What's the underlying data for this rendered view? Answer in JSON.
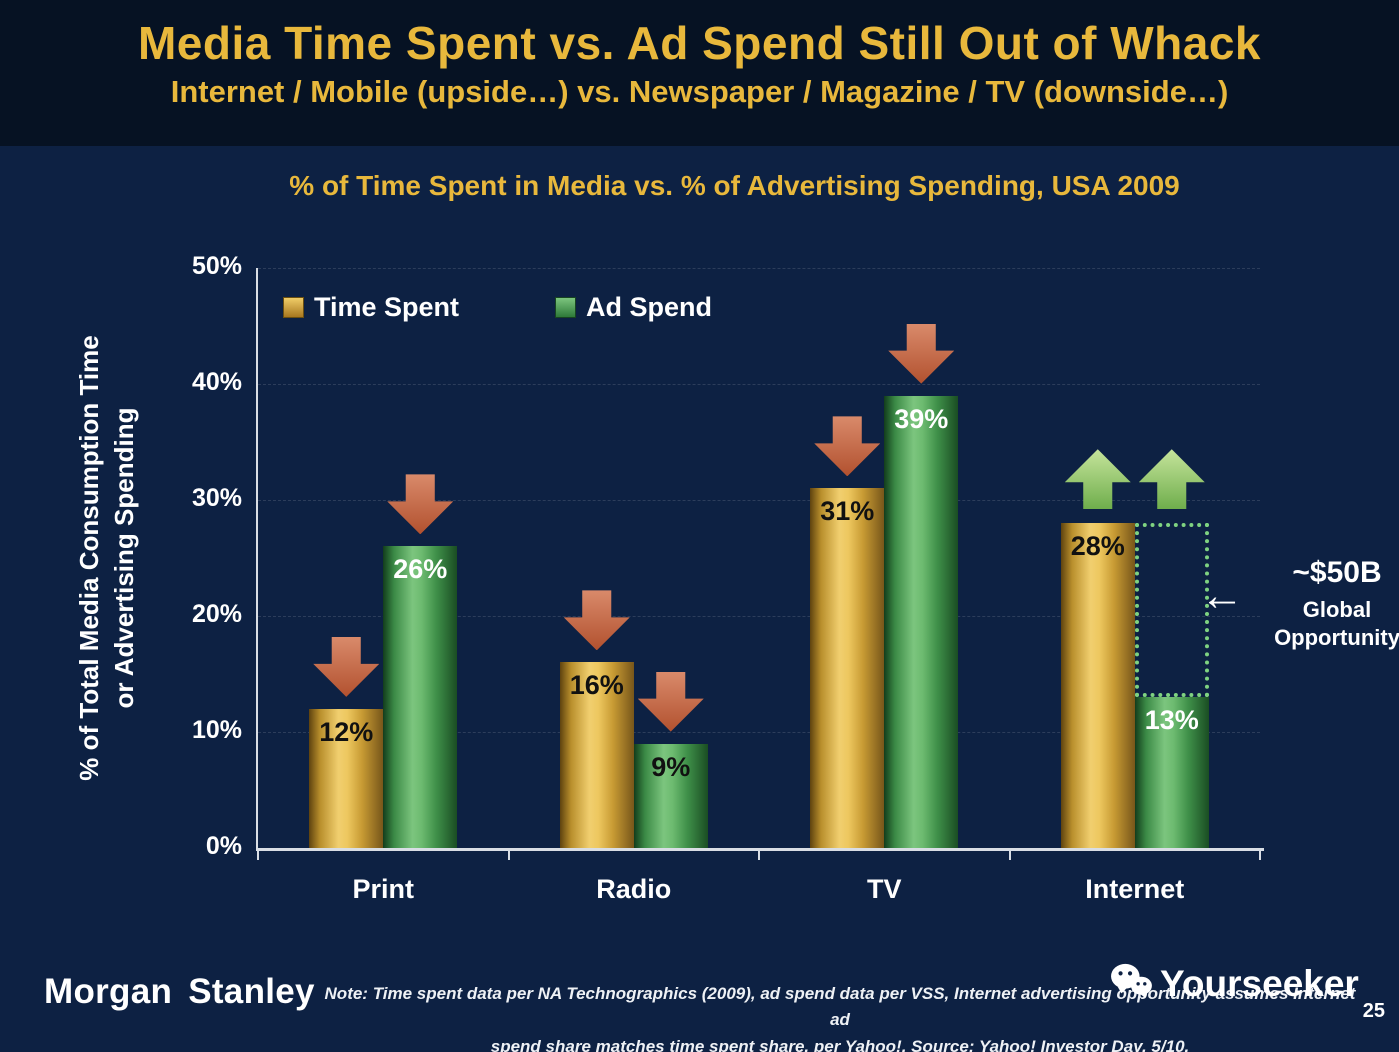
{
  "slide": {
    "title": "Media Time Spent vs. Ad Spend Still Out of Whack",
    "subtitle": "Internet / Mobile (upside…) vs. Newspaper / Magazine / TV (downside…)"
  },
  "chart_data": {
    "type": "bar",
    "title": "% of Time Spent in Media vs. % of Advertising Spending, USA 2009",
    "ylabel": "% of Total Media Consumption Time\nor Advertising Spending",
    "categories": [
      "Print",
      "Radio",
      "TV",
      "Internet"
    ],
    "series": [
      {
        "name": "Time Spent",
        "color": "#e3b64b",
        "values": [
          12,
          16,
          31,
          28
        ],
        "arrows": [
          "down",
          "down",
          "down",
          "up"
        ],
        "label_colors": [
          "#111111",
          "#111111",
          "#111111",
          "#111111"
        ]
      },
      {
        "name": "Ad Spend",
        "color": "#57a25e",
        "values": [
          26,
          9,
          39,
          13
        ],
        "arrows": [
          "down",
          "down",
          "down",
          "up"
        ],
        "label_colors": [
          "#ffffff",
          "#111111",
          "#ffffff",
          "#ffffff"
        ]
      }
    ],
    "ylim": [
      0,
      50
    ],
    "yticks": [
      "0%",
      "10%",
      "20%",
      "30%",
      "40%",
      "50%"
    ],
    "legend_position": "top-left",
    "grid": "faint-dashed",
    "annotation": {
      "value": "~$50B",
      "label": "Global\nOpportunity",
      "arrow": "←",
      "category": "Internet",
      "target_from": 13,
      "target_to": 28
    }
  },
  "footer": {
    "logo": "Morgan Stanley",
    "note": "Note: Time spent data per NA Technographics (2009), ad spend data per VSS, Internet advertising opportunity assumes Internet ad\nspend share matches time spent share, per Yahoo!. Source: Yahoo! Investor Day, 5/10.",
    "watermark": "Yourseeker",
    "page_number": "25"
  }
}
